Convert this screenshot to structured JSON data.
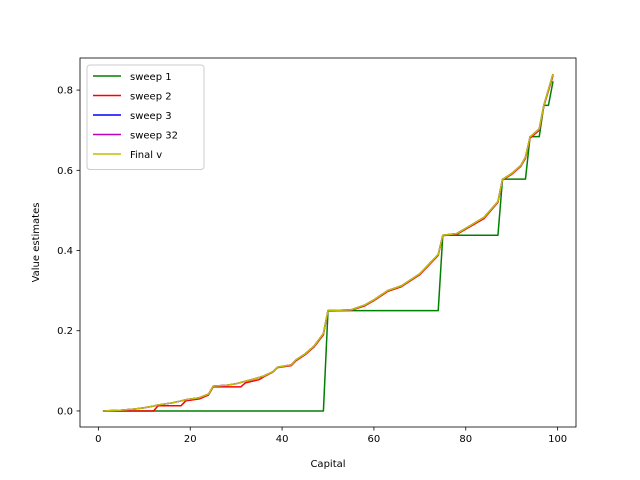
{
  "chart_data": {
    "type": "line",
    "xlabel": "Capital",
    "ylabel": "Value estimates",
    "xlim": [
      -4,
      104
    ],
    "ylim": [
      -0.04,
      0.88
    ],
    "xticks": [
      0,
      20,
      40,
      60,
      80,
      100
    ],
    "yticks": [
      0.0,
      0.2,
      0.4,
      0.6,
      0.8
    ],
    "xtick_labels": [
      "0",
      "20",
      "40",
      "60",
      "80",
      "100"
    ],
    "ytick_labels": [
      "0.0",
      "0.2",
      "0.4",
      "0.6",
      "0.8"
    ],
    "grid": false,
    "legend_position": "upper-left",
    "series": [
      {
        "name": "sweep 1",
        "color": "#008000",
        "x": [
          1,
          49,
          50,
          74,
          75,
          87,
          88,
          93,
          94,
          96,
          97,
          98,
          99
        ],
        "y": [
          0.0,
          0.0,
          0.25,
          0.25,
          0.438,
          0.438,
          0.578,
          0.578,
          0.684,
          0.684,
          0.762,
          0.762,
          0.822
        ]
      },
      {
        "name": "sweep 2",
        "color": "#ff0000",
        "x": [
          1,
          5,
          8,
          11,
          12,
          13,
          15,
          18,
          19,
          22,
          24,
          25,
          28,
          31,
          32,
          35,
          36,
          38,
          39,
          42,
          43,
          45,
          47,
          49,
          50,
          55,
          58,
          60,
          63,
          66,
          70,
          74,
          75,
          78,
          81,
          84,
          87,
          88,
          90,
          92,
          93,
          94,
          96,
          97,
          99
        ],
        "y": [
          0.0,
          0.0,
          0.0,
          0.0,
          0.0,
          0.013,
          0.013,
          0.013,
          0.025,
          0.03,
          0.04,
          0.06,
          0.06,
          0.06,
          0.07,
          0.078,
          0.085,
          0.097,
          0.108,
          0.113,
          0.125,
          0.14,
          0.16,
          0.19,
          0.249,
          0.251,
          0.262,
          0.275,
          0.298,
          0.31,
          0.34,
          0.388,
          0.437,
          0.44,
          0.46,
          0.48,
          0.52,
          0.576,
          0.59,
          0.61,
          0.63,
          0.68,
          0.7,
          0.76,
          0.836
        ]
      },
      {
        "name": "sweep 3",
        "color": "#0000ff",
        "x": [
          1,
          5,
          8,
          10,
          12,
          13,
          16,
          18,
          19,
          22,
          24,
          25,
          28,
          30,
          32,
          34,
          36,
          38,
          39,
          42,
          43,
          45,
          47,
          49,
          50,
          55,
          58,
          60,
          63,
          66,
          70,
          74,
          75,
          78,
          81,
          84,
          87,
          88,
          90,
          92,
          93,
          94,
          96,
          97,
          99
        ],
        "y": [
          0.0,
          0.002,
          0.005,
          0.008,
          0.012,
          0.015,
          0.02,
          0.025,
          0.028,
          0.033,
          0.042,
          0.062,
          0.064,
          0.068,
          0.074,
          0.08,
          0.087,
          0.098,
          0.109,
          0.115,
          0.127,
          0.142,
          0.162,
          0.193,
          0.25,
          0.252,
          0.264,
          0.277,
          0.3,
          0.312,
          0.342,
          0.39,
          0.438,
          0.442,
          0.462,
          0.483,
          0.522,
          0.577,
          0.592,
          0.612,
          0.633,
          0.683,
          0.703,
          0.762,
          0.84
        ]
      },
      {
        "name": "sweep 32",
        "color": "#bf00bf",
        "x": [
          1,
          5,
          8,
          10,
          12,
          13,
          16,
          18,
          19,
          22,
          24,
          25,
          28,
          30,
          32,
          34,
          36,
          38,
          39,
          42,
          43,
          45,
          47,
          49,
          50,
          55,
          58,
          60,
          63,
          66,
          70,
          74,
          75,
          78,
          81,
          84,
          87,
          88,
          90,
          92,
          93,
          94,
          96,
          97,
          99
        ],
        "y": [
          0.0,
          0.002,
          0.005,
          0.008,
          0.012,
          0.015,
          0.02,
          0.025,
          0.028,
          0.033,
          0.042,
          0.062,
          0.064,
          0.068,
          0.074,
          0.08,
          0.087,
          0.098,
          0.109,
          0.115,
          0.127,
          0.142,
          0.162,
          0.193,
          0.25,
          0.252,
          0.264,
          0.277,
          0.3,
          0.312,
          0.342,
          0.39,
          0.438,
          0.442,
          0.462,
          0.483,
          0.522,
          0.577,
          0.592,
          0.612,
          0.633,
          0.683,
          0.703,
          0.762,
          0.84
        ]
      },
      {
        "name": "Final v",
        "color": "#bfbf00",
        "x": [
          1,
          5,
          8,
          10,
          12,
          13,
          16,
          18,
          19,
          22,
          24,
          25,
          28,
          30,
          32,
          34,
          36,
          38,
          39,
          42,
          43,
          45,
          47,
          49,
          50,
          55,
          58,
          60,
          63,
          66,
          70,
          74,
          75,
          78,
          81,
          84,
          87,
          88,
          90,
          92,
          93,
          94,
          96,
          97,
          99
        ],
        "y": [
          0.0,
          0.002,
          0.005,
          0.008,
          0.012,
          0.015,
          0.02,
          0.025,
          0.028,
          0.033,
          0.042,
          0.062,
          0.064,
          0.068,
          0.074,
          0.08,
          0.087,
          0.098,
          0.109,
          0.115,
          0.127,
          0.142,
          0.162,
          0.193,
          0.25,
          0.252,
          0.264,
          0.277,
          0.3,
          0.312,
          0.342,
          0.39,
          0.438,
          0.442,
          0.462,
          0.483,
          0.522,
          0.577,
          0.592,
          0.612,
          0.633,
          0.683,
          0.703,
          0.762,
          0.84
        ]
      }
    ]
  }
}
